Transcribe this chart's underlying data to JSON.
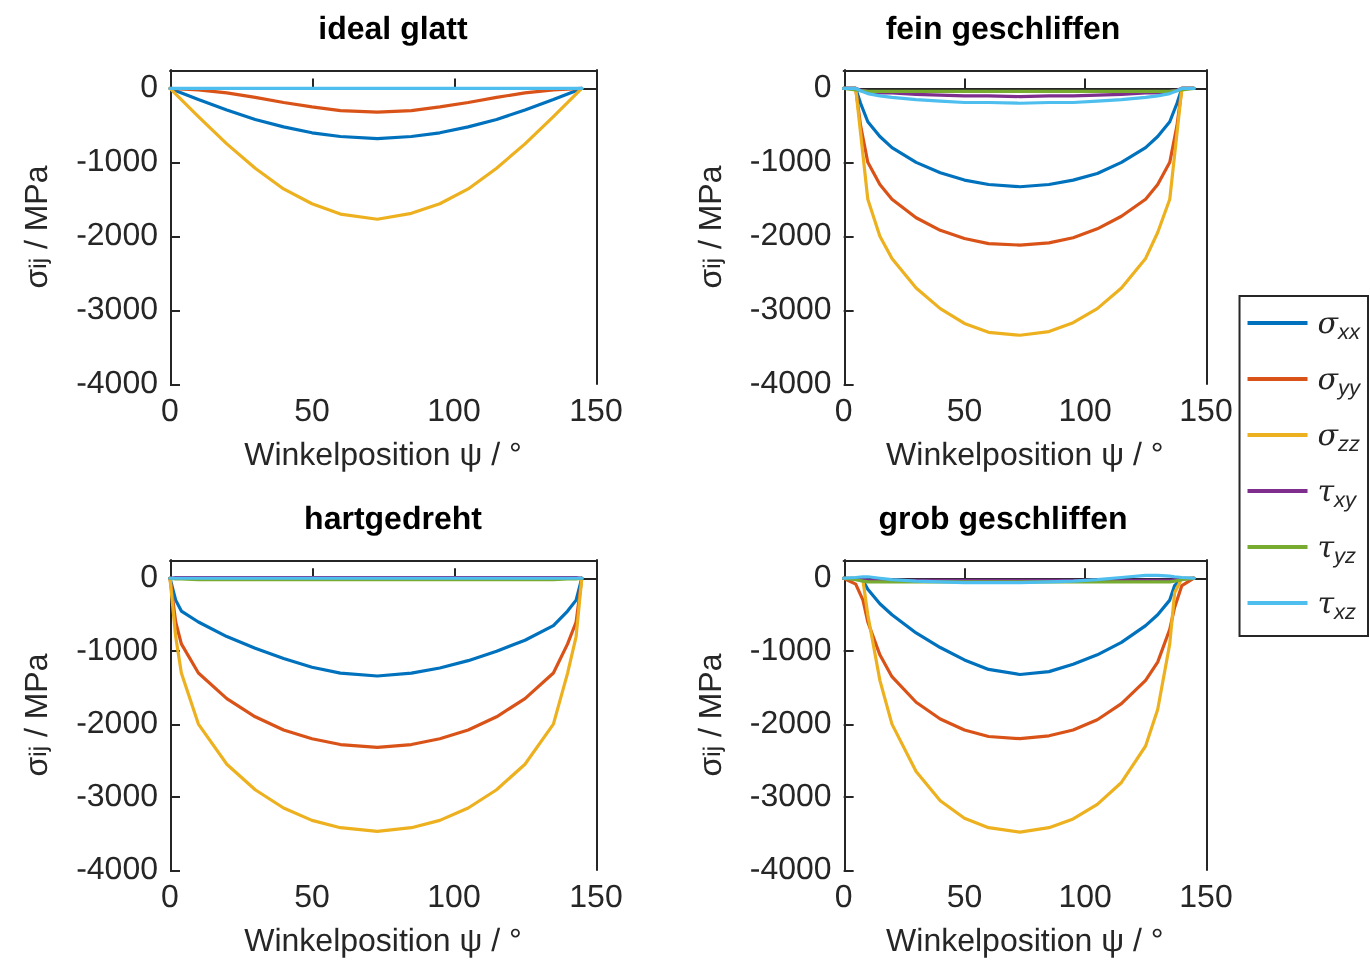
{
  "chart_data": [
    {
      "type": "line",
      "title": "ideal glatt",
      "xlabel": "Winkelposition ψ / °",
      "ylabel": "σ$_{ij}$ / MPa",
      "xlim": [
        0,
        150
      ],
      "xticks": [
        0,
        50,
        100,
        150
      ],
      "ylim": [
        -4000,
        250
      ],
      "yticks": [
        -4000,
        -3000,
        -2000,
        -1000,
        0
      ],
      "legend": false,
      "marker": "none",
      "line_style": "solid",
      "x": [
        0,
        10,
        20,
        30,
        40,
        50,
        60,
        73,
        85,
        95,
        105,
        115,
        125,
        135,
        145
      ],
      "series": [
        {
          "color": "#0072bd",
          "values": [
            0,
            -150,
            -290,
            -420,
            -520,
            -600,
            -650,
            -680,
            -650,
            -600,
            -520,
            -420,
            -290,
            -150,
            0
          ]
        },
        {
          "color": "#d95319",
          "values": [
            0,
            -20,
            -60,
            -120,
            -190,
            -250,
            -300,
            -320,
            -300,
            -250,
            -190,
            -120,
            -60,
            -20,
            0
          ]
        },
        {
          "color": "#edb120",
          "values": [
            0,
            -380,
            -750,
            -1080,
            -1360,
            -1560,
            -1700,
            -1770,
            -1690,
            -1560,
            -1360,
            -1080,
            -750,
            -380,
            0
          ]
        },
        {
          "color": "#4dbeee",
          "values": [
            0,
            0,
            0,
            0,
            0,
            0,
            0,
            0,
            0,
            0,
            0,
            0,
            0,
            0,
            0
          ]
        }
      ]
    },
    {
      "type": "line",
      "title": "fein geschliffen",
      "xlabel": "Winkelposition ψ / °",
      "ylabel": "σ$_{ij}$ / MPa",
      "xlim": [
        0,
        150
      ],
      "xticks": [
        0,
        50,
        100,
        150
      ],
      "ylim": [
        -4000,
        250
      ],
      "yticks": [
        -4000,
        -3000,
        -2000,
        -1000,
        0
      ],
      "legend": "right",
      "marker": "none",
      "line_style": "solid",
      "x": [
        0,
        5,
        7,
        10,
        15,
        20,
        30,
        40,
        50,
        60,
        73,
        85,
        95,
        105,
        115,
        125,
        130,
        135,
        138,
        140,
        145
      ],
      "series": [
        {
          "name": "σ$_{xx}$",
          "color": "#0072bd",
          "values": [
            0,
            0,
            -200,
            -450,
            -650,
            -800,
            -1000,
            -1140,
            -1240,
            -1300,
            -1330,
            -1300,
            -1240,
            -1150,
            -1000,
            -800,
            -650,
            -450,
            -200,
            0,
            0
          ]
        },
        {
          "name": "σ$_{yy}$",
          "color": "#d95319",
          "values": [
            0,
            0,
            -500,
            -1000,
            -1300,
            -1500,
            -1750,
            -1920,
            -2030,
            -2100,
            -2120,
            -2090,
            -2020,
            -1900,
            -1730,
            -1500,
            -1300,
            -1000,
            -500,
            0,
            0
          ]
        },
        {
          "name": "σ$_{zz}$",
          "color": "#edb120",
          "values": [
            0,
            0,
            -600,
            -1500,
            -2000,
            -2300,
            -2700,
            -2980,
            -3180,
            -3300,
            -3340,
            -3290,
            -3170,
            -2980,
            -2700,
            -2300,
            -1950,
            -1500,
            -600,
            0,
            0
          ]
        },
        {
          "name": "τ$_{xy}$",
          "color": "#7e2f8e",
          "values": [
            0,
            0,
            -20,
            -40,
            -60,
            -60,
            -80,
            -90,
            -100,
            -100,
            -110,
            -100,
            -100,
            -90,
            -80,
            -60,
            -60,
            -40,
            -20,
            0,
            0
          ]
        },
        {
          "name": "τ$_{yz}$",
          "color": "#77ac30",
          "values": [
            0,
            -20,
            -30,
            -40,
            -40,
            -40,
            -40,
            -40,
            -40,
            -40,
            -40,
            -40,
            -40,
            -40,
            -40,
            -40,
            -40,
            -40,
            -30,
            -20,
            0
          ]
        },
        {
          "name": "τ$_{xz}$",
          "color": "#4dbeee",
          "values": [
            0,
            0,
            -30,
            -70,
            -100,
            -120,
            -150,
            -170,
            -190,
            -190,
            -200,
            -190,
            -190,
            -170,
            -150,
            -120,
            -100,
            -70,
            -30,
            0,
            0
          ]
        }
      ]
    },
    {
      "type": "line",
      "title": "hartgedreht",
      "xlabel": "Winkelposition ψ / °",
      "ylabel": "σ$_{ij}$ / MPa",
      "xlim": [
        0,
        150
      ],
      "xticks": [
        0,
        50,
        100,
        150
      ],
      "ylim": [
        -4000,
        250
      ],
      "yticks": [
        -4000,
        -3000,
        -2000,
        -1000,
        0
      ],
      "legend": false,
      "marker": "none",
      "line_style": "solid",
      "x": [
        0,
        2,
        4,
        10,
        20,
        30,
        40,
        50,
        60,
        73,
        85,
        95,
        105,
        115,
        125,
        135,
        140,
        143,
        145
      ],
      "series": [
        {
          "color": "#0072bd",
          "values": [
            0,
            -300,
            -450,
            -600,
            -800,
            -960,
            -1100,
            -1220,
            -1300,
            -1340,
            -1300,
            -1230,
            -1130,
            -1000,
            -850,
            -650,
            -450,
            -300,
            0
          ]
        },
        {
          "color": "#d95319",
          "values": [
            0,
            -600,
            -900,
            -1300,
            -1650,
            -1900,
            -2080,
            -2200,
            -2280,
            -2320,
            -2280,
            -2200,
            -2080,
            -1900,
            -1650,
            -1300,
            -900,
            -600,
            0
          ]
        },
        {
          "color": "#edb120",
          "values": [
            0,
            -800,
            -1300,
            -2000,
            -2550,
            -2900,
            -3150,
            -3320,
            -3420,
            -3470,
            -3420,
            -3320,
            -3150,
            -2900,
            -2550,
            -2000,
            -1300,
            -800,
            0
          ]
        },
        {
          "color": "#7e2f8e",
          "values": [
            0,
            10,
            10,
            10,
            10,
            10,
            10,
            10,
            10,
            10,
            10,
            10,
            10,
            10,
            10,
            10,
            10,
            10,
            0
          ]
        },
        {
          "color": "#77ac30",
          "values": [
            0,
            -10,
            -10,
            -20,
            -20,
            -20,
            -20,
            -20,
            -20,
            -20,
            -20,
            -20,
            -20,
            -20,
            -20,
            -20,
            -10,
            -10,
            0
          ]
        },
        {
          "color": "#4dbeee",
          "values": [
            0,
            0,
            0,
            0,
            0,
            0,
            0,
            0,
            0,
            0,
            0,
            0,
            0,
            0,
            0,
            0,
            0,
            0,
            0
          ]
        }
      ]
    },
    {
      "type": "line",
      "title": "grob geschliffen",
      "xlabel": "Winkelposition ψ / °",
      "ylabel": "σ$_{ij}$ / MPa",
      "xlim": [
        0,
        150
      ],
      "xticks": [
        0,
        50,
        100,
        150
      ],
      "ylim": [
        -4000,
        250
      ],
      "yticks": [
        -4000,
        -3000,
        -2000,
        -1000,
        0
      ],
      "legend": false,
      "marker": "none",
      "line_style": "solid",
      "x": [
        0,
        5,
        8,
        10,
        15,
        20,
        30,
        40,
        50,
        60,
        73,
        85,
        95,
        105,
        115,
        125,
        130,
        135,
        137,
        140,
        145
      ],
      "series": [
        {
          "color": "#0072bd",
          "values": [
            0,
            0,
            -30,
            -150,
            -350,
            -500,
            -750,
            -950,
            -1120,
            -1250,
            -1320,
            -1280,
            -1180,
            -1050,
            -880,
            -650,
            -500,
            -300,
            -100,
            0,
            0
          ]
        },
        {
          "color": "#d95319",
          "values": [
            0,
            -80,
            -300,
            -600,
            -1050,
            -1350,
            -1700,
            -1930,
            -2080,
            -2170,
            -2200,
            -2160,
            -2080,
            -1940,
            -1720,
            -1400,
            -1150,
            -700,
            -400,
            -100,
            0
          ]
        },
        {
          "color": "#edb120",
          "values": [
            0,
            0,
            -30,
            -500,
            -1400,
            -2000,
            -2650,
            -3050,
            -3290,
            -3420,
            -3480,
            -3420,
            -3300,
            -3100,
            -2800,
            -2300,
            -1800,
            -900,
            -200,
            0,
            0
          ]
        },
        {
          "color": "#7e2f8e",
          "values": [
            0,
            -10,
            -20,
            -30,
            -30,
            -30,
            -30,
            -30,
            -30,
            -30,
            -30,
            -30,
            -30,
            -30,
            -30,
            -30,
            -30,
            -30,
            -20,
            -10,
            0
          ]
        },
        {
          "color": "#77ac30",
          "values": [
            0,
            -20,
            -40,
            -50,
            -50,
            -50,
            -50,
            -50,
            -50,
            -50,
            -50,
            -50,
            -50,
            -50,
            -50,
            -50,
            -50,
            -50,
            -40,
            -20,
            0
          ]
        },
        {
          "color": "#4dbeee",
          "values": [
            0,
            10,
            20,
            20,
            0,
            -20,
            -40,
            -50,
            -60,
            -60,
            -60,
            -50,
            -40,
            -20,
            10,
            40,
            40,
            30,
            20,
            10,
            0
          ]
        }
      ]
    }
  ]
}
